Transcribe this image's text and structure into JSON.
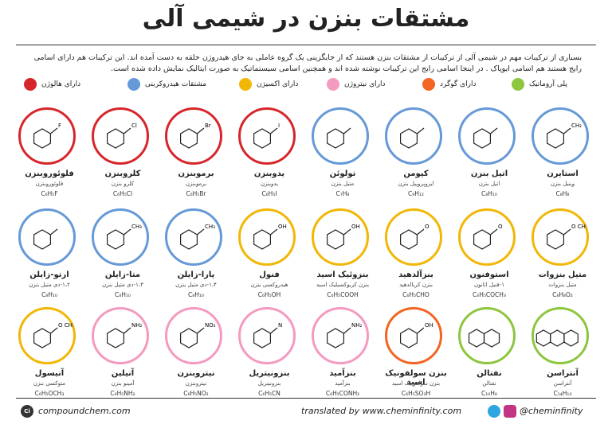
{
  "title": "مشتقات بنزن در شیمی آلی",
  "intro": "بسیاری از ترکیبات مهم در شیمی آلی از ترکیبات از مشتقات بنزن هستند که از جایگزینی یک گروه عاملی به جای هیدروژن حلقه به دست آمده اند. این ترکیبات هم دارای اسامی رایج هستند هم اسامی ایوپاک . در اینجا اسامی رایج این ترکیبات نوشته شده اند و همچنین اسامی سیستماتیک به صورت ایتالیک نمایش داده شده است.",
  "legend": [
    {
      "label": "پلی آروماتیک",
      "color": "#8dc63f"
    },
    {
      "label": "دارای گوگرد",
      "color": "#f26522"
    },
    {
      "label": "دارای نیتروژن",
      "color": "#f49ac1"
    },
    {
      "label": "دارای اکسیژن",
      "color": "#f2b705"
    },
    {
      "label": "مشتقات هیدروکربنی",
      "color": "#6699d8"
    },
    {
      "label": "دارای هالوژن",
      "color": "#d7262b"
    }
  ],
  "compounds": [
    {
      "name": "استایرن",
      "sub": "وینیل بنزن",
      "formula": "C₈H₈",
      "label": "CH₂",
      "color": "#6699d8"
    },
    {
      "name": "اتیل بنزن",
      "sub": "اتیل بنزن",
      "formula": "C₈H₁₀",
      "label": "",
      "color": "#6699d8"
    },
    {
      "name": "کیومن",
      "sub": "ایزوپروپیل بنزن",
      "formula": "C₉H₁₂",
      "label": "",
      "color": "#6699d8"
    },
    {
      "name": "تولوئن",
      "sub": "متیل بنزن",
      "formula": "C₇H₈",
      "label": "",
      "color": "#6699d8"
    },
    {
      "name": "یدوبنزن",
      "sub": "یدوبنزن",
      "formula": "C₆H₅I",
      "label": "I",
      "color": "#d7262b"
    },
    {
      "name": "برموبنزن",
      "sub": "برموبنزن",
      "formula": "C₆H₅Br",
      "label": "Br",
      "color": "#d7262b"
    },
    {
      "name": "کلروبنزن",
      "sub": "کلرو بنزن",
      "formula": "C₆H₅Cl",
      "label": "Cl",
      "color": "#d7262b"
    },
    {
      "name": "فلوئوروبنزن",
      "sub": "فلوئوروبنزن",
      "formula": "C₆H₅F",
      "label": "F",
      "color": "#d7262b"
    },
    {
      "name": "متیل بنزوات",
      "sub": "متیل بنزوات",
      "formula": "C₈H₈O₂",
      "label": "O CH₃",
      "color": "#f2b705"
    },
    {
      "name": "استوفنون",
      "sub": "۱-فنیل اتانون",
      "formula": "C₆H₅COCH₃",
      "label": "O",
      "color": "#f2b705"
    },
    {
      "name": "بنزآلدهید",
      "sub": "بنزن کربالدهید",
      "formula": "C₆H₅CHO",
      "label": "O",
      "color": "#f2b705"
    },
    {
      "name": "بنزوئیک اسید",
      "sub": "بنزن کربوکسیلیک اسید",
      "formula": "C₆H₅COOH",
      "label": "OH",
      "color": "#f2b705"
    },
    {
      "name": "فنول",
      "sub": "هیدروکسی بنزن",
      "formula": "C₆H₅OH",
      "label": "OH",
      "color": "#f2b705"
    },
    {
      "name": "پارا-زایلن",
      "sub": "۱،۴-دی متیل بنزن",
      "formula": "C₈H₁₀",
      "label": "CH₃",
      "color": "#6699d8"
    },
    {
      "name": "متا-زایلن",
      "sub": "۱،۳-دی متیل بنزن",
      "formula": "C₈H₁₀",
      "label": "CH₃",
      "color": "#6699d8"
    },
    {
      "name": "ارتو-زایلن",
      "sub": "۱،۲-دی متیل بنزن",
      "formula": "C₈H₁₀",
      "label": "",
      "color": "#6699d8"
    },
    {
      "name": "آنتراسن",
      "sub": "آنتراسن",
      "formula": "C₁₄H₁₀",
      "label": "",
      "color": "#8dc63f"
    },
    {
      "name": "نفتالن",
      "sub": "نفتالن",
      "formula": "C₁₀H₈",
      "label": "",
      "color": "#8dc63f"
    },
    {
      "name": "بنزن سولفونیک اسید",
      "sub": "بنزن سولفونیک اسید",
      "formula": "C₆H₅SO₃H",
      "label": "OH",
      "color": "#f26522"
    },
    {
      "name": "بنزآمید",
      "sub": "بنزآمید",
      "formula": "C₆H₅CONH₂",
      "label": "NH₂",
      "color": "#f49ac1"
    },
    {
      "name": "بنزونیتریل",
      "sub": "بنزونیتریل",
      "formula": "C₆H₅CN",
      "label": "N",
      "color": "#f49ac1"
    },
    {
      "name": "نیتروبنزن",
      "sub": "نیتروبنزن",
      "formula": "C₆H₅NO₂",
      "label": "NO₂",
      "color": "#f49ac1"
    },
    {
      "name": "آنیلین",
      "sub": "آمینو بنزن",
      "formula": "C₆H₅NH₂",
      "label": "NH₂",
      "color": "#f49ac1"
    },
    {
      "name": "آنیسول",
      "sub": "متوکسی بنزن",
      "formula": "C₆H₅OCH₃",
      "label": "O CH₃",
      "color": "#f2b705"
    }
  ],
  "footer": {
    "left": "compoundchem.com",
    "left_logo": "Ci",
    "center": "translated by www.cheminfinity.com",
    "right": "@cheminfinity"
  }
}
